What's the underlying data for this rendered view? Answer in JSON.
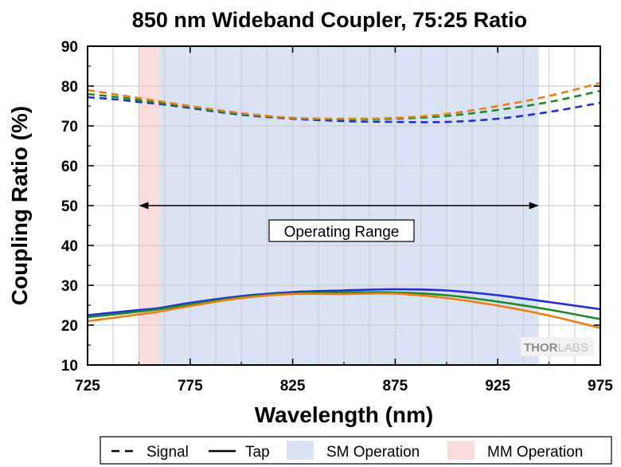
{
  "chart_data": {
    "type": "line",
    "title": "850 nm Wideband Coupler, 75:25 Ratio",
    "xlabel": "Wavelength (nm)",
    "ylabel": "Coupling Ratio (%)",
    "xlim": [
      725,
      975
    ],
    "ylim": [
      10,
      90
    ],
    "xticks": [
      725,
      775,
      825,
      875,
      925,
      975
    ],
    "yticks": [
      10,
      20,
      30,
      40,
      50,
      60,
      70,
      80,
      90
    ],
    "grid": true,
    "regions": [
      {
        "name": "SM Operation",
        "x": [
          750,
          945
        ],
        "color": "#dae3f3"
      },
      {
        "name": "MM Operation",
        "x": [
          750,
          760
        ],
        "color": "#fbdcdc"
      }
    ],
    "annotation": {
      "text": "Operating Range",
      "x": [
        750,
        945
      ],
      "y": 50
    },
    "x": [
      725,
      740,
      750,
      760,
      775,
      800,
      825,
      850,
      875,
      900,
      925,
      950,
      975
    ],
    "series": [
      {
        "color": "#1f2fd6",
        "style": "dashed",
        "role": "Signal",
        "values": [
          77.2,
          76.6,
          76.0,
          75.5,
          74.5,
          72.8,
          71.8,
          71.2,
          71.0,
          71.0,
          71.8,
          73.5,
          75.8
        ]
      },
      {
        "color": "#1a8a2a",
        "style": "dashed",
        "role": "Signal",
        "values": [
          78.0,
          77.2,
          76.5,
          75.8,
          74.8,
          73.0,
          72.0,
          71.7,
          71.8,
          72.5,
          74.0,
          76.0,
          78.8
        ]
      },
      {
        "color": "#f07b10",
        "style": "dashed",
        "role": "Signal",
        "values": [
          79.0,
          77.8,
          77.0,
          76.2,
          75.0,
          73.2,
          72.0,
          71.8,
          72.0,
          73.0,
          75.0,
          77.5,
          80.8
        ]
      },
      {
        "color": "#1f2fd6",
        "style": "solid",
        "role": "Tap",
        "values": [
          22.5,
          23.3,
          23.8,
          24.3,
          25.6,
          27.3,
          28.3,
          28.7,
          29.0,
          28.7,
          27.5,
          25.8,
          24.0
        ]
      },
      {
        "color": "#1a8a2a",
        "style": "solid",
        "role": "Tap",
        "values": [
          22.0,
          22.8,
          23.4,
          24.0,
          25.2,
          27.0,
          28.0,
          28.2,
          28.2,
          27.5,
          25.9,
          23.9,
          21.5
        ]
      },
      {
        "color": "#f07b10",
        "style": "solid",
        "role": "Tap",
        "values": [
          21.0,
          22.0,
          22.7,
          23.4,
          24.8,
          26.8,
          27.8,
          27.8,
          27.9,
          26.8,
          24.9,
          22.4,
          19.3
        ]
      }
    ],
    "legend": {
      "placement": "bottom",
      "entries": [
        {
          "label": "Signal",
          "kind": "dash"
        },
        {
          "label": "Tap",
          "kind": "solid"
        },
        {
          "label": "SM Operation",
          "kind": "patch",
          "color": "#dae3f3"
        },
        {
          "label": "MM Operation",
          "kind": "patch",
          "color": "#fbdcdc"
        }
      ]
    }
  },
  "watermark": {
    "brand": "THORLABS"
  }
}
